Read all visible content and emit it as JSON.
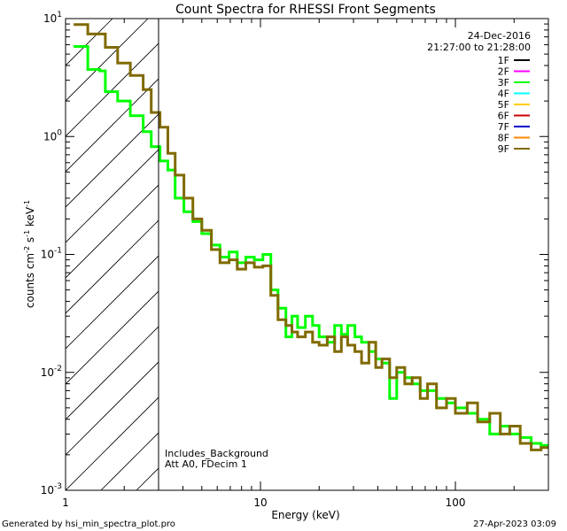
{
  "footer": {
    "generated_by": "Generated by hsi_min_spectra_plot.pro",
    "date": "27-Apr-2023 03:09"
  },
  "chart_data": {
    "type": "line",
    "title": "Count Spectra for RHESSI Front Segments",
    "xlabel": "Energy (keV)",
    "ylabel_parts": {
      "base": "counts cm",
      "exp1": "-2",
      "mid1": " s",
      "exp2": "-1",
      "mid2": " keV",
      "exp3": "-1"
    },
    "xscale": "log",
    "yscale": "log",
    "xlim": [
      1,
      300
    ],
    "ylim": [
      0.001,
      10
    ],
    "x_ticks": [
      {
        "value": 1,
        "label": "1"
      },
      {
        "value": 10,
        "label": "10"
      },
      {
        "value": 100,
        "label": "100"
      }
    ],
    "y_ticks": [
      {
        "value": 0.001,
        "base": "10",
        "exp": "-3"
      },
      {
        "value": 0.01,
        "base": "10",
        "exp": "-2"
      },
      {
        "value": 0.1,
        "base": "10",
        "exp": "-1"
      },
      {
        "value": 1,
        "base": "10",
        "exp": "0"
      },
      {
        "value": 10,
        "base": "10",
        "exp": "1"
      }
    ],
    "date_label": "24-Dec-2016",
    "time_label": "21:27:00 to 21:28:00",
    "annotations": [
      "Includes_Background",
      "Att A0, FDecim 1"
    ],
    "hatched_region_max_keV": 3,
    "legend": [
      {
        "name": "1F",
        "color": "#000000"
      },
      {
        "name": "2F",
        "color": "#ff00ff"
      },
      {
        "name": "3F",
        "color": "#00ff00"
      },
      {
        "name": "4F",
        "color": "#00ffff"
      },
      {
        "name": "5F",
        "color": "#ffcc00"
      },
      {
        "name": "6F",
        "color": "#cc0000"
      },
      {
        "name": "7F",
        "color": "#0000cc"
      },
      {
        "name": "8F",
        "color": "#ff8800"
      },
      {
        "name": "9F",
        "color": "#806a00"
      }
    ],
    "series": [
      {
        "name": "3F",
        "color": "#00ff00",
        "points": [
          [
            1.1,
            5.8
          ],
          [
            1.3,
            5.8
          ],
          [
            1.3,
            3.7
          ],
          [
            1.5,
            3.7
          ],
          [
            1.5,
            3.6
          ],
          [
            1.6,
            3.6
          ],
          [
            1.6,
            2.4
          ],
          [
            1.85,
            2.4
          ],
          [
            1.85,
            2.0
          ],
          [
            2.15,
            2.0
          ],
          [
            2.15,
            1.5
          ],
          [
            2.5,
            1.5
          ],
          [
            2.5,
            1.1
          ],
          [
            2.75,
            1.1
          ],
          [
            2.75,
            0.82
          ],
          [
            3.05,
            0.82
          ],
          [
            3.05,
            0.62
          ],
          [
            3.35,
            0.62
          ],
          [
            3.35,
            0.52
          ],
          [
            3.65,
            0.52
          ],
          [
            3.65,
            0.3
          ],
          [
            4.05,
            0.3
          ],
          [
            4.05,
            0.23
          ],
          [
            4.5,
            0.23
          ],
          [
            4.5,
            0.19
          ],
          [
            5.0,
            0.19
          ],
          [
            5.0,
            0.15
          ],
          [
            5.6,
            0.15
          ],
          [
            5.6,
            0.12
          ],
          [
            6.2,
            0.12
          ],
          [
            6.2,
            0.095
          ],
          [
            6.9,
            0.095
          ],
          [
            6.9,
            0.105
          ],
          [
            7.6,
            0.105
          ],
          [
            7.6,
            0.085
          ],
          [
            8.4,
            0.085
          ],
          [
            8.4,
            0.095
          ],
          [
            9.3,
            0.095
          ],
          [
            9.3,
            0.09
          ],
          [
            10.3,
            0.09
          ],
          [
            10.3,
            0.1
          ],
          [
            11.3,
            0.1
          ],
          [
            11.3,
            0.05
          ],
          [
            12.3,
            0.05
          ],
          [
            12.3,
            0.035
          ],
          [
            13.5,
            0.035
          ],
          [
            13.5,
            0.02
          ],
          [
            14.5,
            0.02
          ],
          [
            14.5,
            0.03
          ],
          [
            15.5,
            0.03
          ],
          [
            15.5,
            0.024
          ],
          [
            17,
            0.024
          ],
          [
            17,
            0.03
          ],
          [
            18.5,
            0.03
          ],
          [
            18.5,
            0.025
          ],
          [
            20,
            0.025
          ],
          [
            20,
            0.02
          ],
          [
            22,
            0.02
          ],
          [
            22,
            0.018
          ],
          [
            24,
            0.018
          ],
          [
            24,
            0.025
          ],
          [
            26,
            0.025
          ],
          [
            26,
            0.021
          ],
          [
            28,
            0.021
          ],
          [
            28,
            0.025
          ],
          [
            30.5,
            0.025
          ],
          [
            30.5,
            0.02
          ],
          [
            33,
            0.02
          ],
          [
            33,
            0.018
          ],
          [
            36,
            0.018
          ],
          [
            36,
            0.015
          ],
          [
            39,
            0.015
          ],
          [
            39,
            0.013
          ],
          [
            42,
            0.013
          ],
          [
            42,
            0.012
          ],
          [
            46,
            0.012
          ],
          [
            46,
            0.006
          ],
          [
            50,
            0.006
          ],
          [
            50,
            0.01
          ],
          [
            55,
            0.01
          ],
          [
            55,
            0.009
          ],
          [
            60,
            0.009
          ],
          [
            60,
            0.008
          ],
          [
            66,
            0.008
          ],
          [
            66,
            0.007
          ],
          [
            72,
            0.007
          ],
          [
            72,
            0.007
          ],
          [
            80,
            0.007
          ],
          [
            80,
            0.006
          ],
          [
            90,
            0.006
          ],
          [
            90,
            0.0055
          ],
          [
            100,
            0.0055
          ],
          [
            100,
            0.005
          ],
          [
            115,
            0.005
          ],
          [
            115,
            0.0045
          ],
          [
            130,
            0.0045
          ],
          [
            130,
            0.004
          ],
          [
            150,
            0.004
          ],
          [
            150,
            0.003
          ],
          [
            170,
            0.003
          ],
          [
            170,
            0.0035
          ],
          [
            190,
            0.0035
          ],
          [
            190,
            0.003
          ],
          [
            215,
            0.003
          ],
          [
            215,
            0.0028
          ],
          [
            245,
            0.0028
          ],
          [
            245,
            0.0025
          ],
          [
            275,
            0.0025
          ],
          [
            275,
            0.0024
          ],
          [
            300,
            0.0024
          ]
        ]
      },
      {
        "name": "9F",
        "color": "#806a00",
        "points": [
          [
            1.1,
            8.9
          ],
          [
            1.3,
            8.9
          ],
          [
            1.3,
            7.4
          ],
          [
            1.6,
            7.4
          ],
          [
            1.6,
            5.7
          ],
          [
            1.85,
            5.7
          ],
          [
            1.85,
            4.2
          ],
          [
            2.15,
            4.2
          ],
          [
            2.15,
            3.3
          ],
          [
            2.5,
            3.3
          ],
          [
            2.5,
            2.5
          ],
          [
            2.75,
            2.5
          ],
          [
            2.75,
            1.6
          ],
          [
            3.05,
            1.6
          ],
          [
            3.05,
            1.2
          ],
          [
            3.35,
            1.2
          ],
          [
            3.35,
            0.72
          ],
          [
            3.65,
            0.72
          ],
          [
            3.65,
            0.47
          ],
          [
            4.05,
            0.47
          ],
          [
            4.05,
            0.3
          ],
          [
            4.5,
            0.3
          ],
          [
            4.5,
            0.2
          ],
          [
            5.0,
            0.2
          ],
          [
            5.0,
            0.16
          ],
          [
            5.6,
            0.16
          ],
          [
            5.6,
            0.11
          ],
          [
            6.2,
            0.11
          ],
          [
            6.2,
            0.085
          ],
          [
            6.9,
            0.085
          ],
          [
            6.9,
            0.09
          ],
          [
            7.6,
            0.09
          ],
          [
            7.6,
            0.075
          ],
          [
            8.4,
            0.075
          ],
          [
            8.4,
            0.085
          ],
          [
            9.3,
            0.085
          ],
          [
            9.3,
            0.078
          ],
          [
            10.3,
            0.078
          ],
          [
            10.3,
            0.08
          ],
          [
            11.3,
            0.08
          ],
          [
            11.3,
            0.045
          ],
          [
            12.3,
            0.045
          ],
          [
            12.3,
            0.028
          ],
          [
            13.5,
            0.028
          ],
          [
            13.5,
            0.025
          ],
          [
            14.5,
            0.025
          ],
          [
            14.5,
            0.022
          ],
          [
            15.5,
            0.022
          ],
          [
            15.5,
            0.02
          ],
          [
            17,
            0.02
          ],
          [
            17,
            0.022
          ],
          [
            18.5,
            0.022
          ],
          [
            18.5,
            0.018
          ],
          [
            20,
            0.018
          ],
          [
            20,
            0.017
          ],
          [
            22,
            0.017
          ],
          [
            22,
            0.02
          ],
          [
            24,
            0.02
          ],
          [
            24,
            0.015
          ],
          [
            26,
            0.015
          ],
          [
            26,
            0.02
          ],
          [
            28,
            0.02
          ],
          [
            28,
            0.017
          ],
          [
            30.5,
            0.017
          ],
          [
            30.5,
            0.015
          ],
          [
            33,
            0.015
          ],
          [
            33,
            0.012
          ],
          [
            36,
            0.012
          ],
          [
            36,
            0.018
          ],
          [
            39,
            0.018
          ],
          [
            39,
            0.011
          ],
          [
            42,
            0.011
          ],
          [
            42,
            0.013
          ],
          [
            46,
            0.013
          ],
          [
            46,
            0.009
          ],
          [
            50,
            0.009
          ],
          [
            50,
            0.011
          ],
          [
            55,
            0.011
          ],
          [
            55,
            0.008
          ],
          [
            60,
            0.008
          ],
          [
            60,
            0.009
          ],
          [
            66,
            0.009
          ],
          [
            66,
            0.006
          ],
          [
            72,
            0.006
          ],
          [
            72,
            0.008
          ],
          [
            80,
            0.008
          ],
          [
            80,
            0.005
          ],
          [
            90,
            0.005
          ],
          [
            90,
            0.006
          ],
          [
            100,
            0.006
          ],
          [
            100,
            0.0045
          ],
          [
            115,
            0.0045
          ],
          [
            115,
            0.0055
          ],
          [
            130,
            0.0055
          ],
          [
            130,
            0.0038
          ],
          [
            150,
            0.0038
          ],
          [
            150,
            0.0045
          ],
          [
            170,
            0.0045
          ],
          [
            170,
            0.003
          ],
          [
            190,
            0.003
          ],
          [
            190,
            0.0035
          ],
          [
            215,
            0.0035
          ],
          [
            215,
            0.0025
          ],
          [
            245,
            0.0025
          ],
          [
            245,
            0.0022
          ],
          [
            275,
            0.0022
          ],
          [
            275,
            0.0023
          ],
          [
            300,
            0.0023
          ]
        ]
      }
    ]
  }
}
